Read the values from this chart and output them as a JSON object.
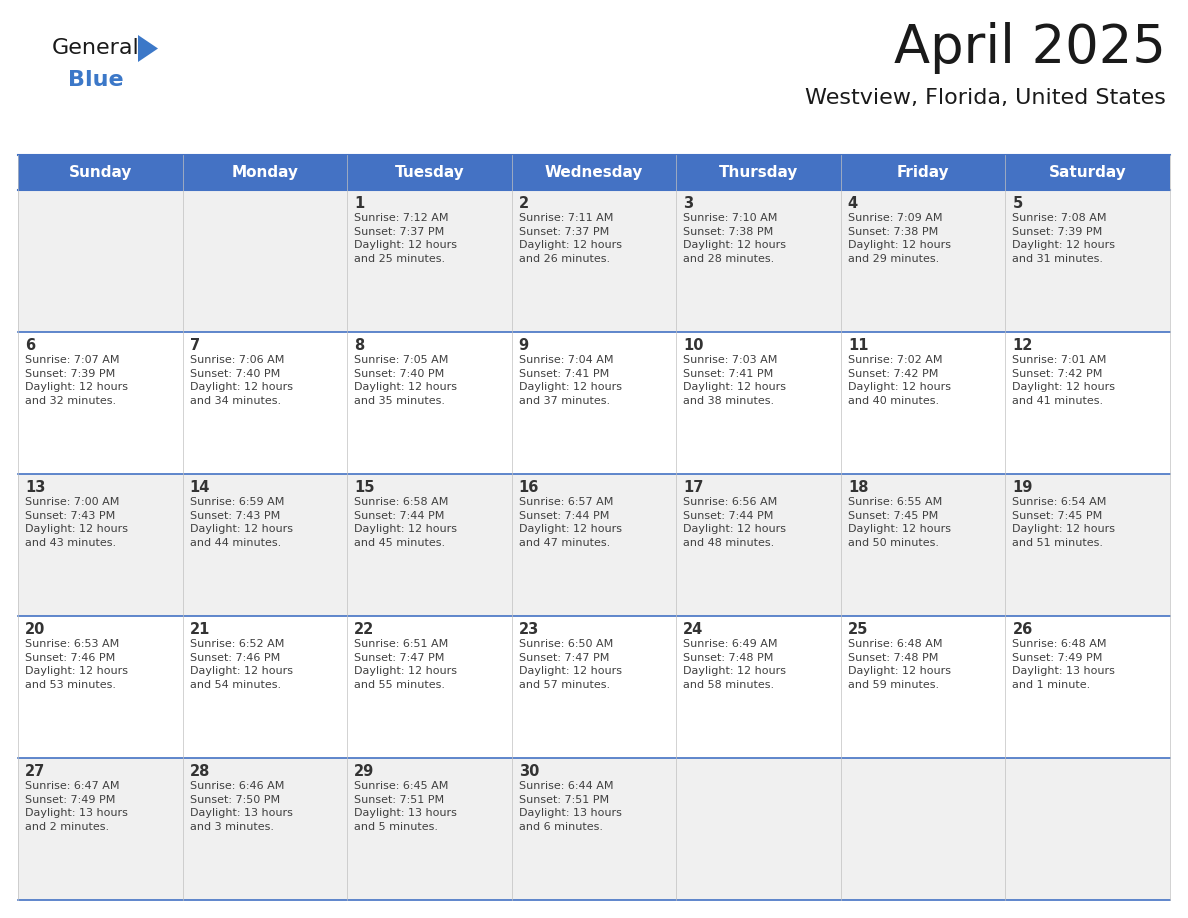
{
  "title": "April 2025",
  "subtitle": "Westview, Florida, United States",
  "header_bg_color": "#4472C4",
  "header_text_color": "#FFFFFF",
  "day_names": [
    "Sunday",
    "Monday",
    "Tuesday",
    "Wednesday",
    "Thursday",
    "Friday",
    "Saturday"
  ],
  "border_color": "#4472C4",
  "row_divider_color": "#4472C4",
  "text_color": "#404040",
  "date_color": "#333333",
  "title_color": "#1a1a1a",
  "logo_general_color": "#1a1a1a",
  "logo_blue_color": "#3C78C8",
  "logo_triangle_color": "#3C78C8",
  "cell_bg_colors": [
    "#F0F0F0",
    "#FFFFFF",
    "#F0F0F0",
    "#FFFFFF",
    "#F0F0F0"
  ],
  "days": [
    {
      "date": 1,
      "col": 2,
      "row": 0,
      "sunrise": "7:12 AM",
      "sunset": "7:37 PM",
      "daylight": "12 hours and 25 minutes."
    },
    {
      "date": 2,
      "col": 3,
      "row": 0,
      "sunrise": "7:11 AM",
      "sunset": "7:37 PM",
      "daylight": "12 hours and 26 minutes."
    },
    {
      "date": 3,
      "col": 4,
      "row": 0,
      "sunrise": "7:10 AM",
      "sunset": "7:38 PM",
      "daylight": "12 hours and 28 minutes."
    },
    {
      "date": 4,
      "col": 5,
      "row": 0,
      "sunrise": "7:09 AM",
      "sunset": "7:38 PM",
      "daylight": "12 hours and 29 minutes."
    },
    {
      "date": 5,
      "col": 6,
      "row": 0,
      "sunrise": "7:08 AM",
      "sunset": "7:39 PM",
      "daylight": "12 hours and 31 minutes."
    },
    {
      "date": 6,
      "col": 0,
      "row": 1,
      "sunrise": "7:07 AM",
      "sunset": "7:39 PM",
      "daylight": "12 hours and 32 minutes."
    },
    {
      "date": 7,
      "col": 1,
      "row": 1,
      "sunrise": "7:06 AM",
      "sunset": "7:40 PM",
      "daylight": "12 hours and 34 minutes."
    },
    {
      "date": 8,
      "col": 2,
      "row": 1,
      "sunrise": "7:05 AM",
      "sunset": "7:40 PM",
      "daylight": "12 hours and 35 minutes."
    },
    {
      "date": 9,
      "col": 3,
      "row": 1,
      "sunrise": "7:04 AM",
      "sunset": "7:41 PM",
      "daylight": "12 hours and 37 minutes."
    },
    {
      "date": 10,
      "col": 4,
      "row": 1,
      "sunrise": "7:03 AM",
      "sunset": "7:41 PM",
      "daylight": "12 hours and 38 minutes."
    },
    {
      "date": 11,
      "col": 5,
      "row": 1,
      "sunrise": "7:02 AM",
      "sunset": "7:42 PM",
      "daylight": "12 hours and 40 minutes."
    },
    {
      "date": 12,
      "col": 6,
      "row": 1,
      "sunrise": "7:01 AM",
      "sunset": "7:42 PM",
      "daylight": "12 hours and 41 minutes."
    },
    {
      "date": 13,
      "col": 0,
      "row": 2,
      "sunrise": "7:00 AM",
      "sunset": "7:43 PM",
      "daylight": "12 hours and 43 minutes."
    },
    {
      "date": 14,
      "col": 1,
      "row": 2,
      "sunrise": "6:59 AM",
      "sunset": "7:43 PM",
      "daylight": "12 hours and 44 minutes."
    },
    {
      "date": 15,
      "col": 2,
      "row": 2,
      "sunrise": "6:58 AM",
      "sunset": "7:44 PM",
      "daylight": "12 hours and 45 minutes."
    },
    {
      "date": 16,
      "col": 3,
      "row": 2,
      "sunrise": "6:57 AM",
      "sunset": "7:44 PM",
      "daylight": "12 hours and 47 minutes."
    },
    {
      "date": 17,
      "col": 4,
      "row": 2,
      "sunrise": "6:56 AM",
      "sunset": "7:44 PM",
      "daylight": "12 hours and 48 minutes."
    },
    {
      "date": 18,
      "col": 5,
      "row": 2,
      "sunrise": "6:55 AM",
      "sunset": "7:45 PM",
      "daylight": "12 hours and 50 minutes."
    },
    {
      "date": 19,
      "col": 6,
      "row": 2,
      "sunrise": "6:54 AM",
      "sunset": "7:45 PM",
      "daylight": "12 hours and 51 minutes."
    },
    {
      "date": 20,
      "col": 0,
      "row": 3,
      "sunrise": "6:53 AM",
      "sunset": "7:46 PM",
      "daylight": "12 hours and 53 minutes."
    },
    {
      "date": 21,
      "col": 1,
      "row": 3,
      "sunrise": "6:52 AM",
      "sunset": "7:46 PM",
      "daylight": "12 hours and 54 minutes."
    },
    {
      "date": 22,
      "col": 2,
      "row": 3,
      "sunrise": "6:51 AM",
      "sunset": "7:47 PM",
      "daylight": "12 hours and 55 minutes."
    },
    {
      "date": 23,
      "col": 3,
      "row": 3,
      "sunrise": "6:50 AM",
      "sunset": "7:47 PM",
      "daylight": "12 hours and 57 minutes."
    },
    {
      "date": 24,
      "col": 4,
      "row": 3,
      "sunrise": "6:49 AM",
      "sunset": "7:48 PM",
      "daylight": "12 hours and 58 minutes."
    },
    {
      "date": 25,
      "col": 5,
      "row": 3,
      "sunrise": "6:48 AM",
      "sunset": "7:48 PM",
      "daylight": "12 hours and 59 minutes."
    },
    {
      "date": 26,
      "col": 6,
      "row": 3,
      "sunrise": "6:48 AM",
      "sunset": "7:49 PM",
      "daylight": "13 hours and 1 minute."
    },
    {
      "date": 27,
      "col": 0,
      "row": 4,
      "sunrise": "6:47 AM",
      "sunset": "7:49 PM",
      "daylight": "13 hours and 2 minutes."
    },
    {
      "date": 28,
      "col": 1,
      "row": 4,
      "sunrise": "6:46 AM",
      "sunset": "7:50 PM",
      "daylight": "13 hours and 3 minutes."
    },
    {
      "date": 29,
      "col": 2,
      "row": 4,
      "sunrise": "6:45 AM",
      "sunset": "7:51 PM",
      "daylight": "13 hours and 5 minutes."
    },
    {
      "date": 30,
      "col": 3,
      "row": 4,
      "sunrise": "6:44 AM",
      "sunset": "7:51 PM",
      "daylight": "13 hours and 6 minutes."
    }
  ]
}
